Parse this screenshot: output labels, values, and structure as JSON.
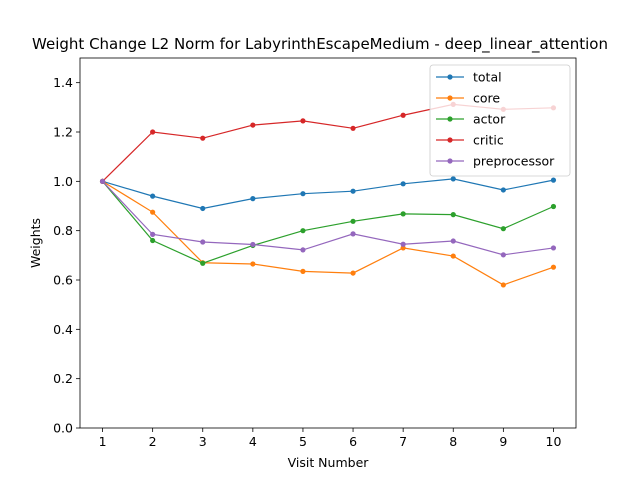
{
  "chart_data": {
    "type": "line",
    "title": "Weight Change L2 Norm for LabyrinthEscapeMedium - deep_linear_attention",
    "xlabel": "Visit Number",
    "ylabel": "Weights",
    "x": [
      1,
      2,
      3,
      4,
      5,
      6,
      7,
      8,
      9,
      10
    ],
    "xticks": [
      "1",
      "2",
      "3",
      "4",
      "5",
      "6",
      "7",
      "8",
      "9",
      "10"
    ],
    "yticks": [
      "0.0",
      "0.2",
      "0.4",
      "0.6",
      "0.8",
      "1.0",
      "1.2",
      "1.4"
    ],
    "ylim": [
      0,
      1.5
    ],
    "xlim": [
      0.55,
      10.45
    ],
    "grid": false,
    "legend_position": "top-right",
    "series": [
      {
        "name": "total",
        "color": "#1f77b4",
        "values": [
          1.0,
          0.94,
          0.89,
          0.93,
          0.95,
          0.96,
          0.99,
          1.01,
          0.965,
          1.005
        ]
      },
      {
        "name": "core",
        "color": "#ff7f0e",
        "values": [
          1.0,
          0.875,
          0.67,
          0.665,
          0.635,
          0.628,
          0.73,
          0.697,
          0.58,
          0.652
        ]
      },
      {
        "name": "actor",
        "color": "#2ca02c",
        "values": [
          1.0,
          0.76,
          0.668,
          0.74,
          0.8,
          0.838,
          0.868,
          0.865,
          0.808,
          0.898
        ]
      },
      {
        "name": "critic",
        "color": "#d62728",
        "values": [
          1.0,
          1.2,
          1.175,
          1.228,
          1.245,
          1.215,
          1.268,
          1.312,
          1.292,
          1.298
        ]
      },
      {
        "name": "preprocessor",
        "color": "#9467bd",
        "values": [
          1.0,
          0.785,
          0.754,
          0.744,
          0.722,
          0.787,
          0.745,
          0.758,
          0.702,
          0.73
        ]
      }
    ]
  }
}
